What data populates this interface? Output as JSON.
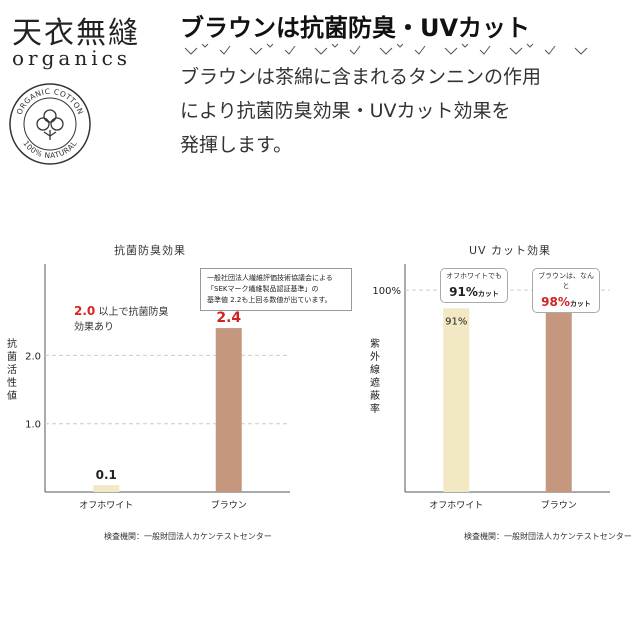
{
  "brand": {
    "jp": "天衣無縫",
    "en": "organics"
  },
  "badge": {
    "top_text": "ORGANIC COTTON",
    "bottom_text": "100% NATURAL"
  },
  "headline": "ブラウンは抗菌防臭・UVカット",
  "body_lines": [
    "ブラウンは茶綿に含まれるタンニンの作用",
    "により抗菌防臭効果・UVカット効果を",
    "発揮します。"
  ],
  "colors": {
    "offwhite": "#f2e8c4",
    "brown": "#c4977e",
    "red": "#d22222",
    "gridline": "#cccccc"
  },
  "chart_data": [
    {
      "type": "bar",
      "title": "抗菌防臭効果",
      "ylabel": "抗菌活性値",
      "ylabel_chars": [
        "抗",
        "菌",
        "活",
        "性",
        "値"
      ],
      "categories": [
        "オフホワイト",
        "ブラウン"
      ],
      "values": [
        0.1,
        2.4
      ],
      "value_labels": [
        "0.1",
        "2.4"
      ],
      "yticks": [
        "1.0",
        "2.0"
      ],
      "ylim": [
        0,
        3.25
      ],
      "grid": "dashed at 1.0 and 2.0",
      "note": {
        "value": "2.0",
        "line1_suffix": "以上で抗菌防臭",
        "line2": "効果あり"
      },
      "callout_lines": [
        "一般社団法人繊維評価技術協議会による",
        "「SEKマーク繊維製品認証基準」の",
        "基準値 2.2も上回る数値が出ています。"
      ],
      "source": "検査機関：一般財団法人カケンテストセンター"
    },
    {
      "type": "bar",
      "title": "UV カット効果",
      "ylabel": "紫外線遮蔽率",
      "ylabel_chars": [
        "紫",
        "外",
        "線",
        "遮",
        "蔽",
        "率"
      ],
      "categories": [
        "オフホワイト",
        "ブラウン"
      ],
      "values": [
        91,
        98
      ],
      "value_labels": [
        "91%",
        "98%"
      ],
      "yticks": [
        "100%"
      ],
      "ylim": [
        0,
        110
      ],
      "grid": "dashed at 100%",
      "bubbles": [
        {
          "small": "オフホワイトでも",
          "value": "91%",
          "unit": "カット"
        },
        {
          "small": "ブラウンは、なんと",
          "value": "98%",
          "unit": "カット"
        }
      ],
      "source": "検査機関：一般財団法人カケンテストセンター"
    }
  ]
}
